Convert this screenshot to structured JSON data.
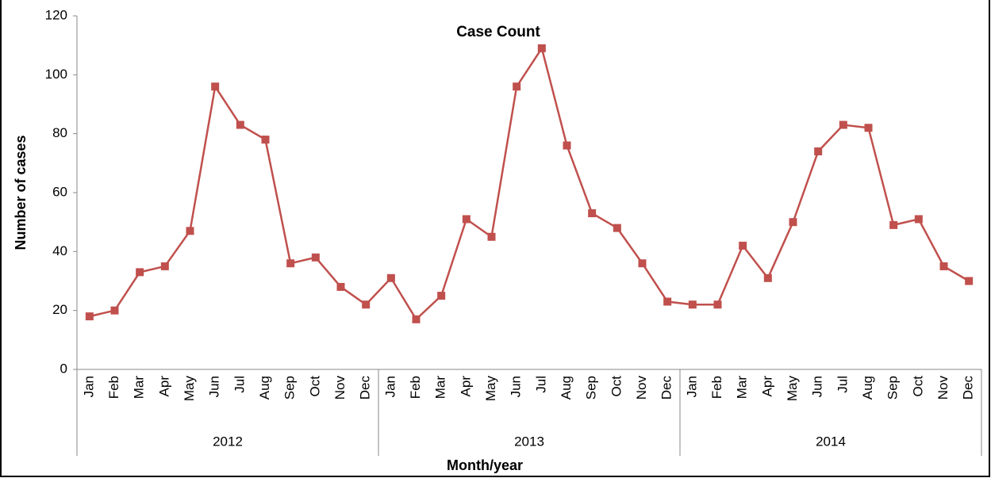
{
  "chart_data": {
    "type": "line",
    "title": "Case Count",
    "x_label": "Month/year",
    "y_label": "Number of cases",
    "categories": [
      "Jan",
      "Feb",
      "Mar",
      "Apr",
      "May",
      "Jun",
      "Jul",
      "Aug",
      "Sep",
      "Oct",
      "Nov",
      "Dec",
      "Jan",
      "Feb",
      "Mar",
      "Apr",
      "May",
      "Jun",
      "Jul",
      "Aug",
      "Sep",
      "Oct",
      "Nov",
      "Dec",
      "Jan",
      "Feb",
      "Mar",
      "Apr",
      "May",
      "Jun",
      "Jul",
      "Aug",
      "Sep",
      "Oct",
      "Nov",
      "Dec"
    ],
    "groups": [
      "2012",
      "2013",
      "2014"
    ],
    "series": [
      {
        "name": "Case Count",
        "color": "#c0504d",
        "values": [
          18,
          20,
          33,
          35,
          47,
          96,
          83,
          78,
          36,
          38,
          28,
          22,
          31,
          17,
          25,
          51,
          45,
          96,
          109,
          76,
          53,
          48,
          36,
          23,
          22,
          22,
          42,
          31,
          50,
          74,
          83,
          82,
          49,
          51,
          35,
          30
        ]
      }
    ],
    "ylim": [
      0,
      120
    ],
    "yticks": [
      0,
      20,
      40,
      60,
      80,
      100,
      120
    ]
  }
}
